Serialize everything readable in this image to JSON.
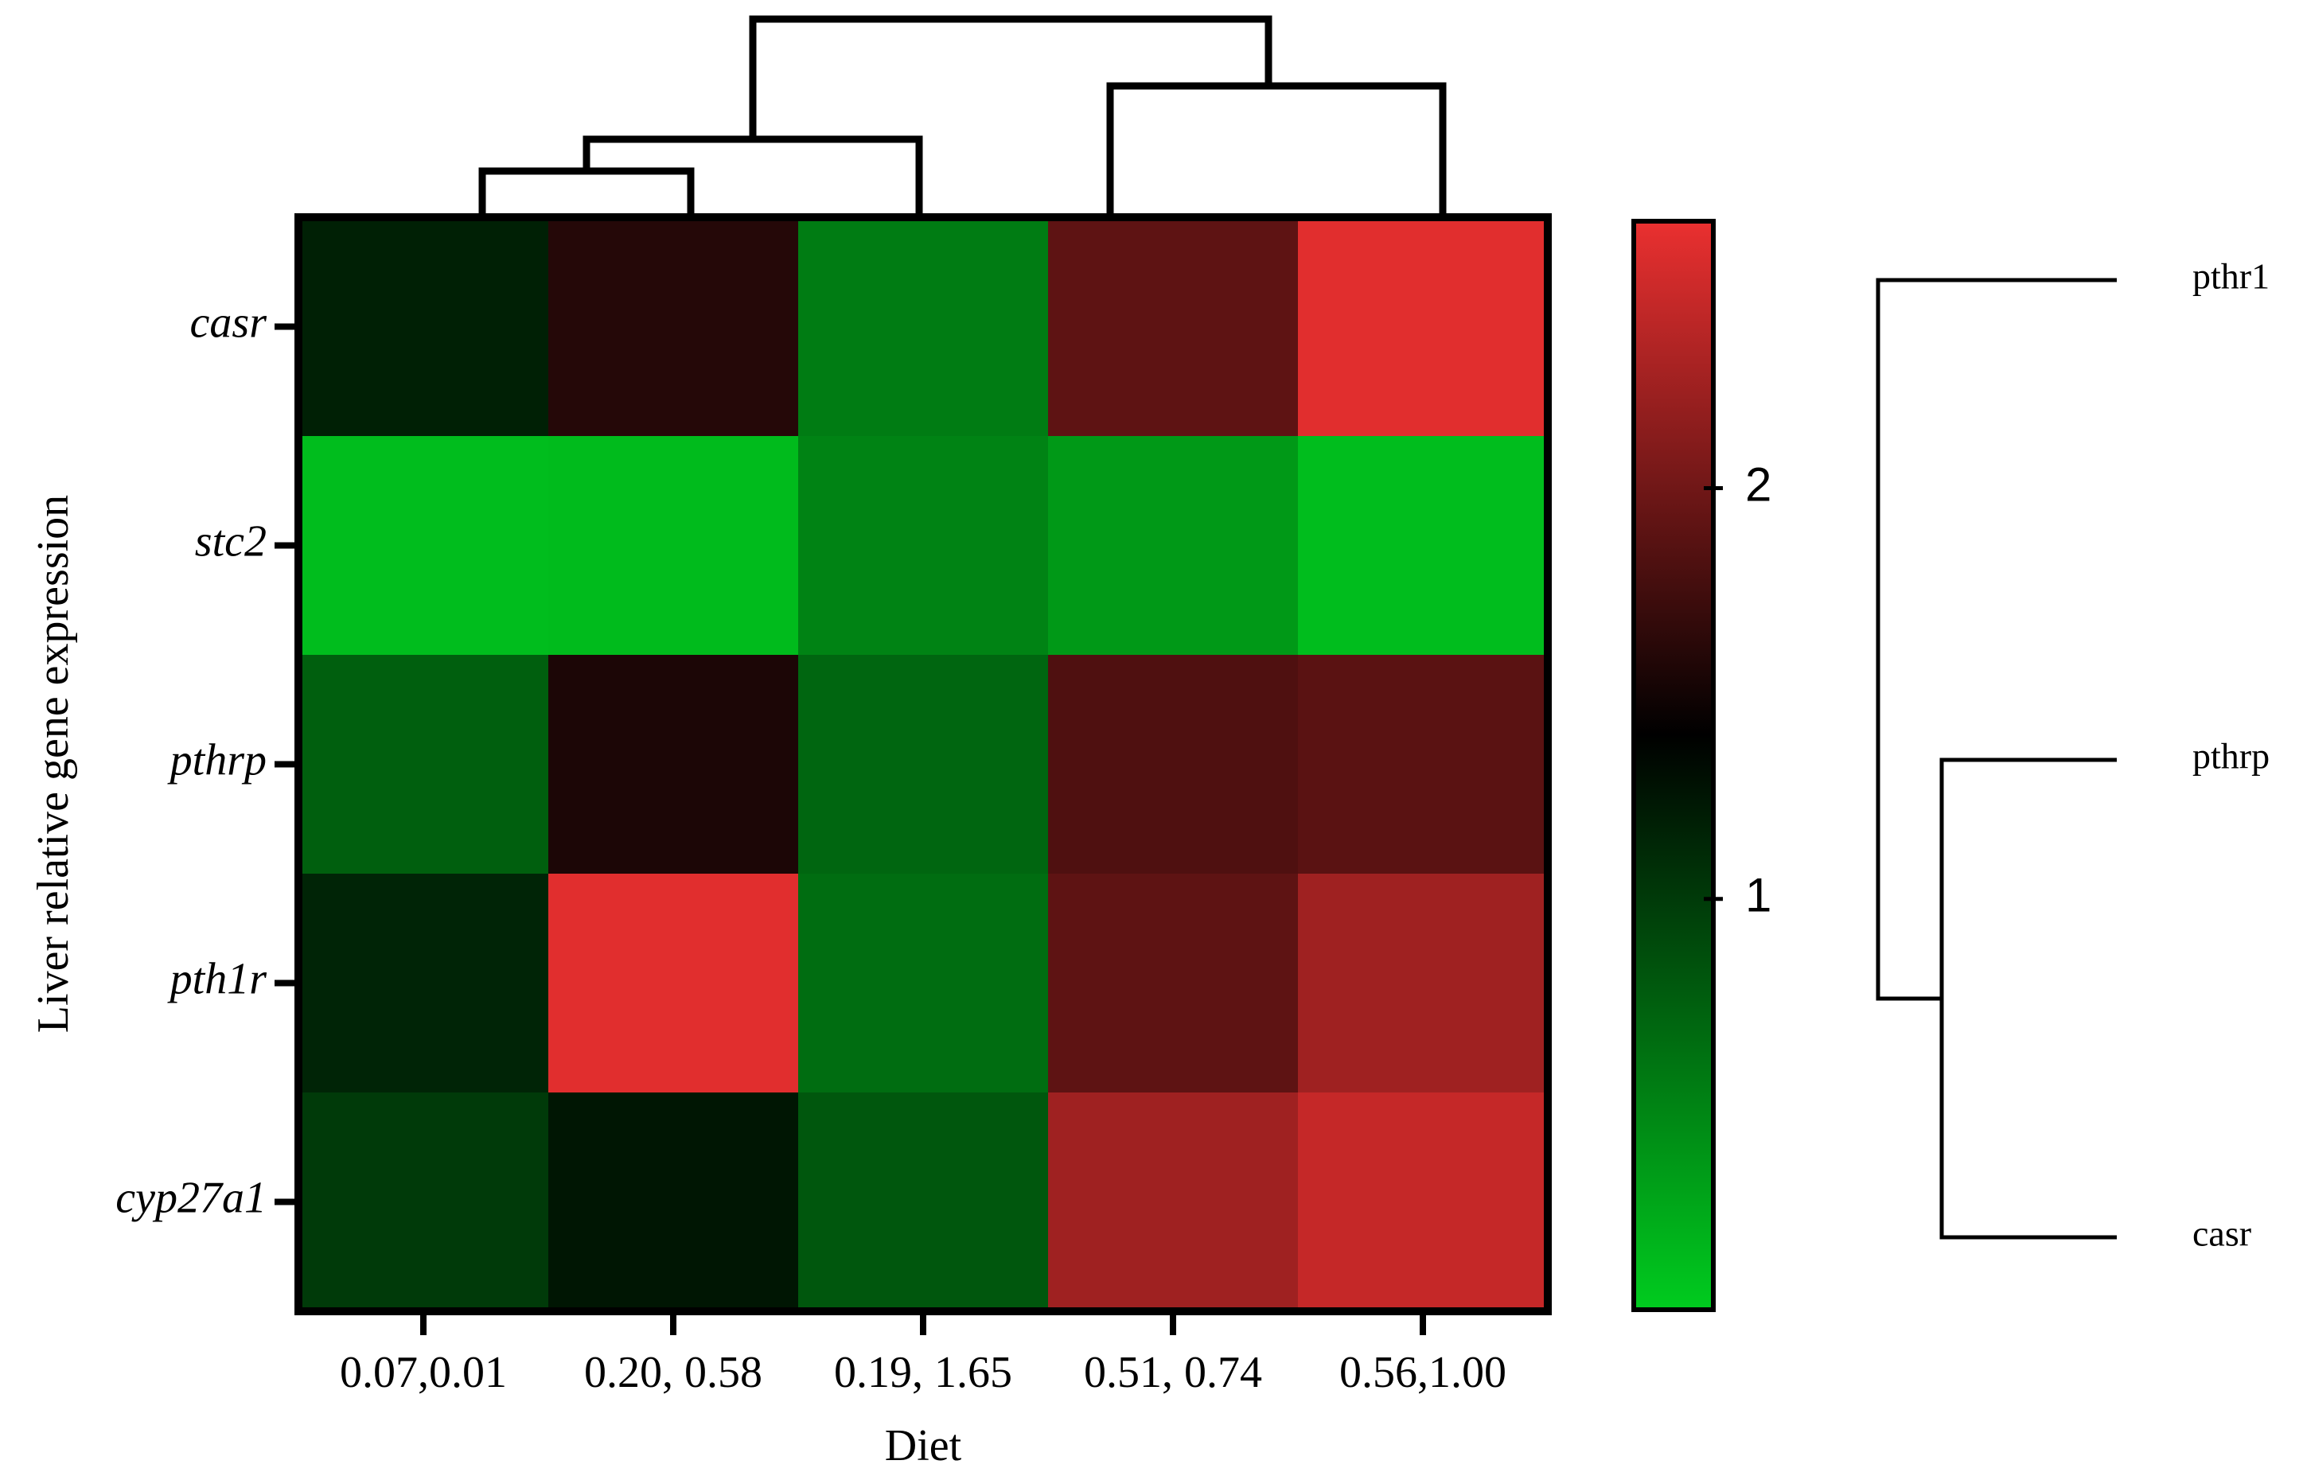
{
  "chart_data": {
    "type": "heatmap",
    "title": "",
    "xlabel": "Diet",
    "ylabel": "Liver relative gene expression",
    "columns": [
      "0.07,0.01",
      "0.20, 0.58",
      "0.19, 1.65",
      "0.51, 0.74",
      "0.56,1.00"
    ],
    "rows": [
      "casr",
      "stc2",
      "pthrp",
      "pth1r",
      "cyp27a1"
    ],
    "values": [
      [
        1.18,
        1.6,
        0.55,
        1.9,
        2.6
      ],
      [
        0.1,
        0.12,
        0.5,
        0.35,
        0.1
      ],
      [
        0.75,
        1.55,
        0.7,
        1.82,
        1.88
      ],
      [
        1.15,
        2.6,
        0.65,
        1.9,
        2.25
      ],
      [
        1.0,
        1.25,
        0.8,
        2.25,
        2.45
      ]
    ],
    "colorbar": {
      "min": 0.0,
      "max": 2.65,
      "ticks": [
        1,
        2
      ],
      "colors": {
        "low": "#00cc1f",
        "mid": "#000000",
        "high": "#ea3030"
      },
      "mid_value": 1.4
    },
    "column_dendrogram": true,
    "row_dendrogram": {
      "labels": [
        "pthr1",
        "pthrp",
        "casr"
      ]
    }
  }
}
